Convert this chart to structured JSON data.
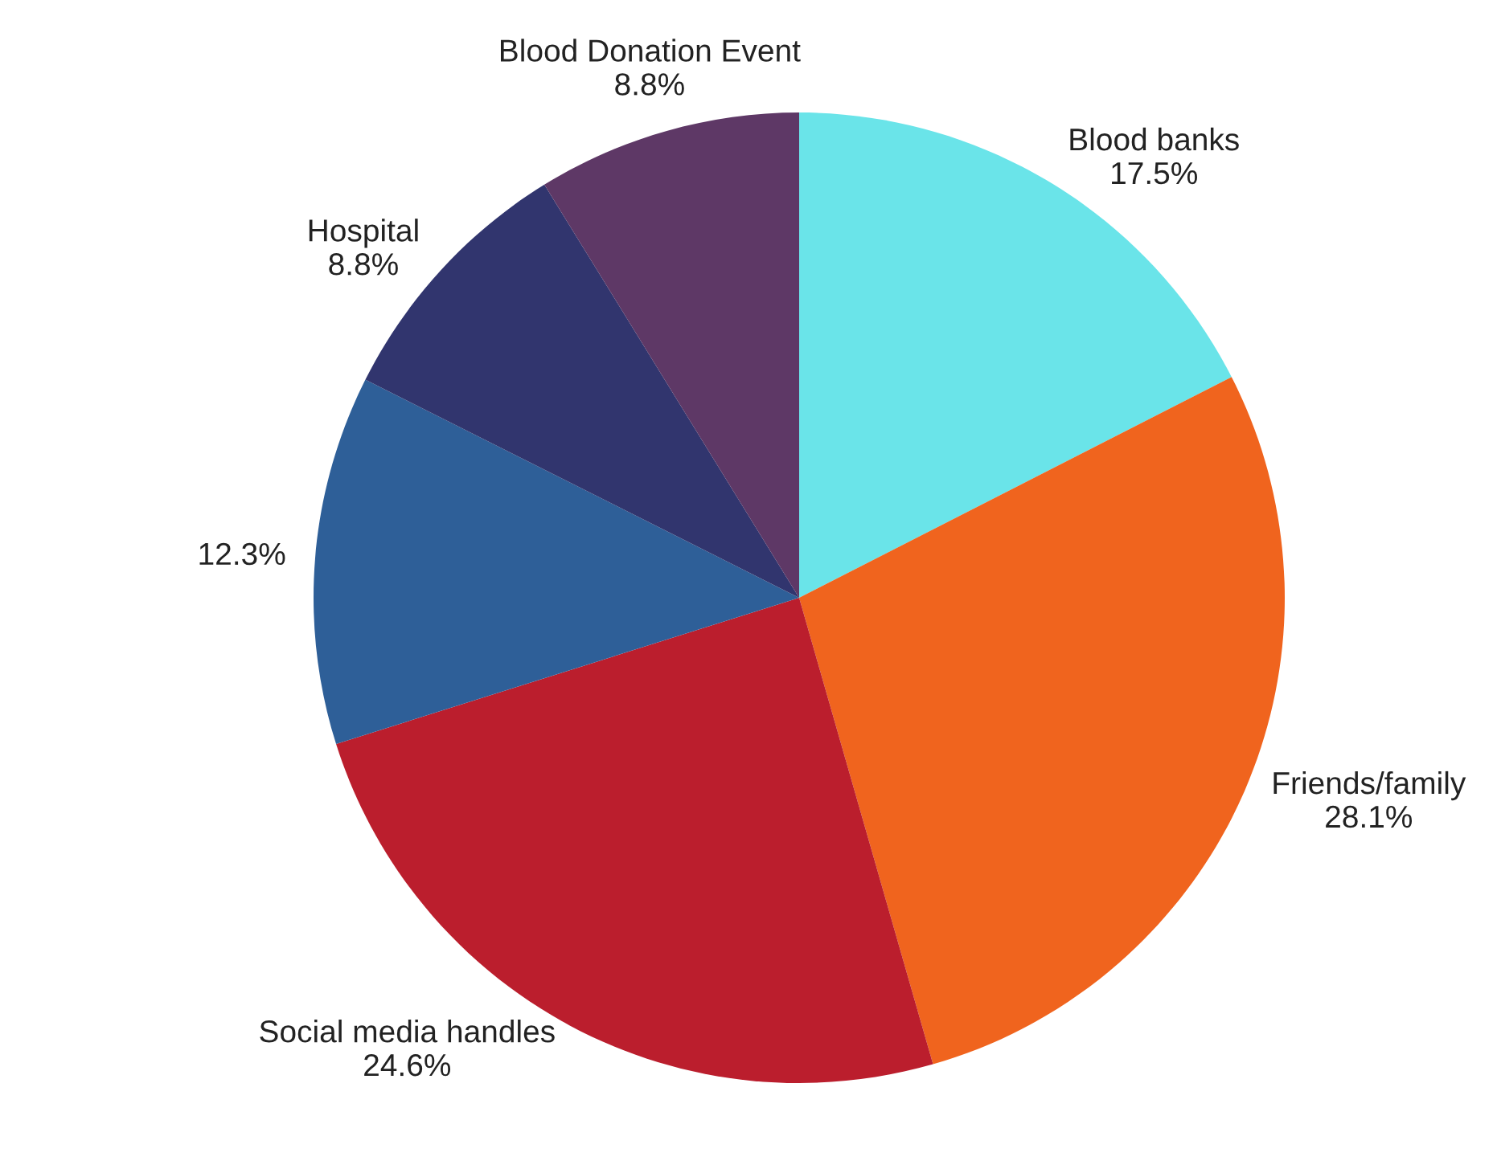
{
  "chart_data": {
    "type": "pie",
    "categories": [
      "Blood banks",
      "Friends/family",
      "Social media handles",
      null,
      "Hospital",
      "Blood Donation Event"
    ],
    "values": [
      17.5,
      28.1,
      24.6,
      12.3,
      8.8,
      8.8
    ],
    "value_labels": [
      "17.5%",
      "28.1%",
      "24.6%",
      "12.3%",
      "8.8%",
      "8.8%"
    ],
    "colors": [
      "#6ae4e9",
      "#f0641e",
      "#bb1e2d",
      "#2e5f98",
      "#31356e",
      "#5e3866"
    ],
    "legend": false
  }
}
